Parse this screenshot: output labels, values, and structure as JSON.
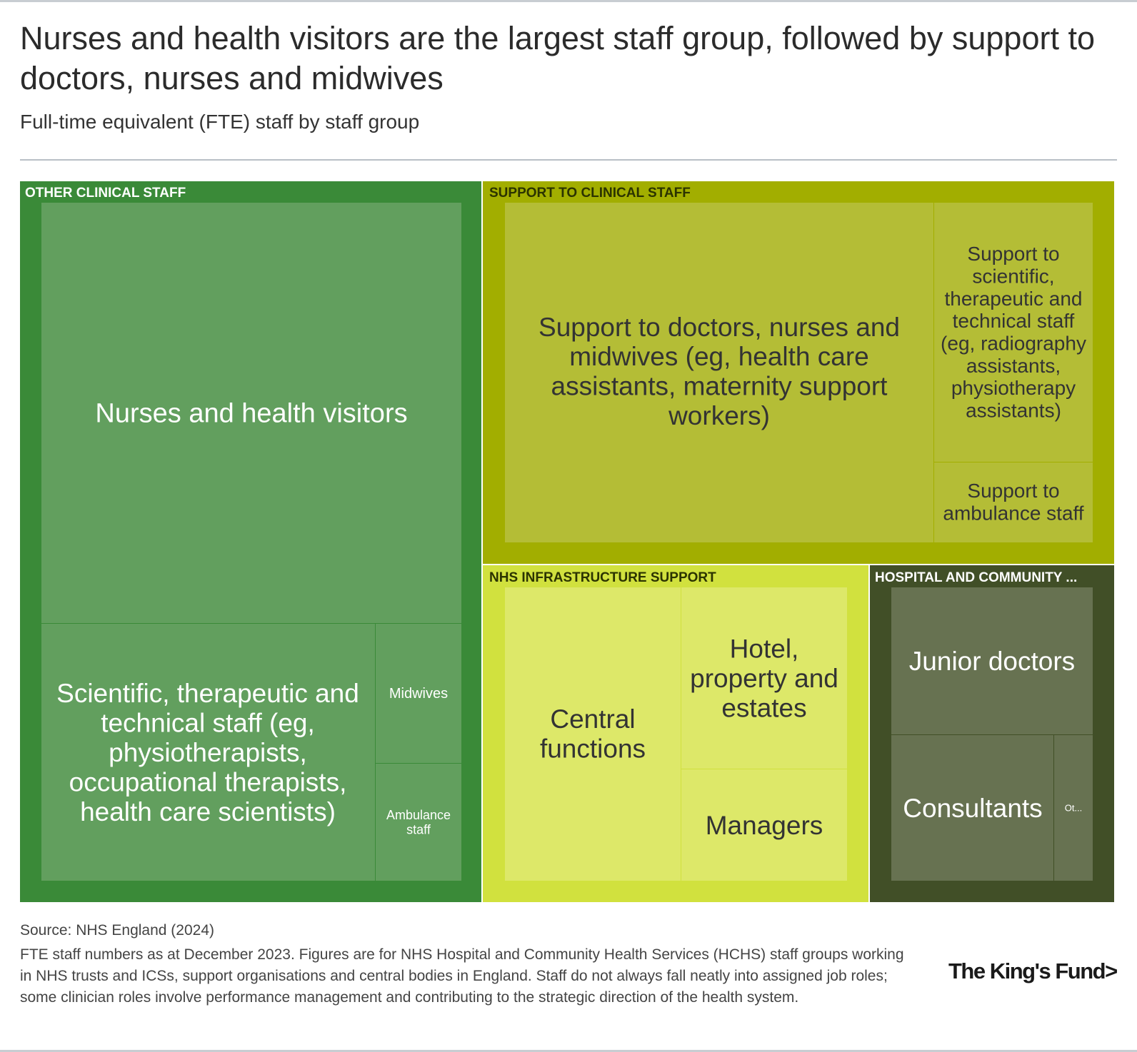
{
  "header": {
    "title": "Nurses and health visitors are the largest staff group, followed by support to doctors, nurses and midwives",
    "subtitle": "Full-time equivalent (FTE) staff by staff group"
  },
  "chart_data": {
    "type": "treemap",
    "groups": [
      {
        "name": "OTHER CLINICAL STAFF",
        "color": "#3a8a38",
        "children": [
          {
            "name": "Nurses and health visitors",
            "color": "#629f5e"
          },
          {
            "name": "Scientific, therapeutic and technical staff (eg, physiotherapists, occupational therapists, health care scientists)",
            "color": "#629f5e"
          },
          {
            "name": "Midwives",
            "color": "#629f5e"
          },
          {
            "name": "Ambulance staff",
            "color": "#629f5e"
          }
        ]
      },
      {
        "name": "SUPPORT TO CLINICAL STAFF",
        "color": "#a2ae00",
        "children": [
          {
            "name": "Support to doctors, nurses and midwives (eg, health care assistants, maternity support workers)",
            "color": "#b4bd36"
          },
          {
            "name": "Support to scientific, therapeutic and technical staff (eg, radiography assistants, physiotherapy assistants)",
            "color": "#b4bd36"
          },
          {
            "name": "Support to ambulance staff",
            "color": "#b4bd36"
          }
        ]
      },
      {
        "name": "NHS INFRASTRUCTURE SUPPORT",
        "color": "#d1e13e",
        "children": [
          {
            "name": "Central functions",
            "color": "#dde869"
          },
          {
            "name": "Hotel, property and estates",
            "color": "#dde869"
          },
          {
            "name": "Managers",
            "color": "#dde869"
          }
        ]
      },
      {
        "name": "HOSPITAL AND COMMUNITY ...",
        "color": "#414f27",
        "children": [
          {
            "name": "Junior doctors",
            "color": "#677251"
          },
          {
            "name": "Consultants",
            "color": "#677251"
          },
          {
            "name": "Ot...",
            "color": "#677251"
          }
        ]
      }
    ]
  },
  "footer": {
    "source": "Source: NHS England (2024)",
    "notes": "FTE staff numbers as at December 2023. Figures are for NHS Hospital and Community Health Services (HCHS) staff groups working in NHS trusts and ICSs, support organisations and central bodies in England. Staff do not always fall neatly into assigned job roles; some clinician roles involve performance management and contributing to the strategic direction of the health system.",
    "logo_text": "The King's Fund>"
  }
}
